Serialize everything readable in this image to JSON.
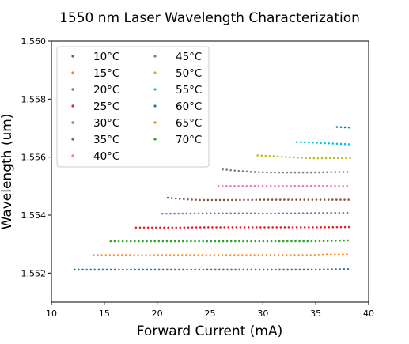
{
  "chart_data": {
    "type": "scatter",
    "title": "1550 nm Laser Wavelength Characterization",
    "xlabel": "Forward Current (mA)",
    "ylabel": "Wavelength (um)",
    "xlim": [
      10,
      40
    ],
    "ylim": [
      1.551,
      1.56
    ],
    "xticks": [
      10,
      15,
      20,
      25,
      30,
      35,
      40
    ],
    "yticks": [
      1.552,
      1.554,
      1.556,
      1.558,
      1.56
    ],
    "ytick_labels": [
      "1.552",
      "1.554",
      "1.556",
      "1.558",
      "1.560"
    ],
    "grid": false,
    "legend_position": "top-left",
    "legend_columns": 2,
    "series": [
      {
        "name": "10°C",
        "color": "#1f77b4",
        "points": [
          [
            12.2,
            1.55212
          ],
          [
            15.0,
            1.55212
          ],
          [
            20.0,
            1.55212
          ],
          [
            25.0,
            1.55212
          ],
          [
            30.0,
            1.55212
          ],
          [
            35.0,
            1.55212
          ],
          [
            36.2,
            1.55213
          ],
          [
            38.3,
            1.55214
          ]
        ]
      },
      {
        "name": "15°C",
        "color": "#ff7f0e",
        "points": [
          [
            14.0,
            1.55262
          ],
          [
            20.0,
            1.55262
          ],
          [
            25.0,
            1.55262
          ],
          [
            30.0,
            1.55262
          ],
          [
            35.0,
            1.55262
          ],
          [
            36.0,
            1.55264
          ],
          [
            38.3,
            1.55265
          ]
        ]
      },
      {
        "name": "20°C",
        "color": "#2ca02c",
        "points": [
          [
            15.6,
            1.5531
          ],
          [
            20.0,
            1.5531
          ],
          [
            25.0,
            1.5531
          ],
          [
            30.0,
            1.5531
          ],
          [
            35.0,
            1.5531
          ],
          [
            37.0,
            1.55312
          ],
          [
            38.3,
            1.55313
          ]
        ]
      },
      {
        "name": "25°C",
        "color": "#d62728",
        "points": [
          [
            18.0,
            1.55357
          ],
          [
            22.0,
            1.55357
          ],
          [
            25.0,
            1.55358
          ],
          [
            30.0,
            1.55358
          ],
          [
            35.0,
            1.55358
          ],
          [
            38.3,
            1.55359
          ]
        ]
      },
      {
        "name": "30°C",
        "color": "#9467bd",
        "points": [
          [
            20.5,
            1.55405
          ],
          [
            25.0,
            1.55406
          ],
          [
            30.0,
            1.55406
          ],
          [
            33.0,
            1.55406
          ],
          [
            35.0,
            1.55407
          ],
          [
            38.3,
            1.55408
          ]
        ]
      },
      {
        "name": "35°C",
        "color": "#8c564b",
        "points": [
          [
            21.0,
            1.5546
          ],
          [
            22.5,
            1.55455
          ],
          [
            24.0,
            1.55452
          ],
          [
            25.0,
            1.55452
          ],
          [
            27.0,
            1.55452
          ],
          [
            30.0,
            1.55453
          ],
          [
            35.0,
            1.55453
          ],
          [
            38.3,
            1.55453
          ]
        ]
      },
      {
        "name": "40°C",
        "color": "#e377c2",
        "points": [
          [
            25.8,
            1.555
          ],
          [
            30.0,
            1.555
          ],
          [
            35.0,
            1.555
          ],
          [
            38.3,
            1.555
          ]
        ]
      },
      {
        "name": "45°C",
        "color": "#7f7f7f",
        "points": [
          [
            26.2,
            1.55558
          ],
          [
            27.5,
            1.55553
          ],
          [
            29.0,
            1.55549
          ],
          [
            30.5,
            1.55547
          ],
          [
            32.0,
            1.55547
          ],
          [
            35.0,
            1.55547
          ],
          [
            36.0,
            1.55548
          ],
          [
            38.3,
            1.55549
          ]
        ]
      },
      {
        "name": "50°C",
        "color": "#bcbd22",
        "points": [
          [
            29.5,
            1.55606
          ],
          [
            31.0,
            1.55603
          ],
          [
            33.0,
            1.55599
          ],
          [
            35.0,
            1.55596
          ],
          [
            36.5,
            1.55597
          ],
          [
            38.3,
            1.55597
          ]
        ]
      },
      {
        "name": "55°C",
        "color": "#17becf",
        "points": [
          [
            33.2,
            1.55652
          ],
          [
            35.0,
            1.5565
          ],
          [
            36.5,
            1.55647
          ],
          [
            38.3,
            1.55644
          ]
        ]
      },
      {
        "name": "60°C",
        "color": "#1f77b4",
        "points": [
          [
            37.0,
            1.55704
          ],
          [
            38.3,
            1.55702
          ]
        ]
      },
      {
        "name": "65°C",
        "color": "#ff7f0e",
        "points": []
      },
      {
        "name": "70°C",
        "color": "#2ca02c",
        "points": []
      }
    ]
  }
}
